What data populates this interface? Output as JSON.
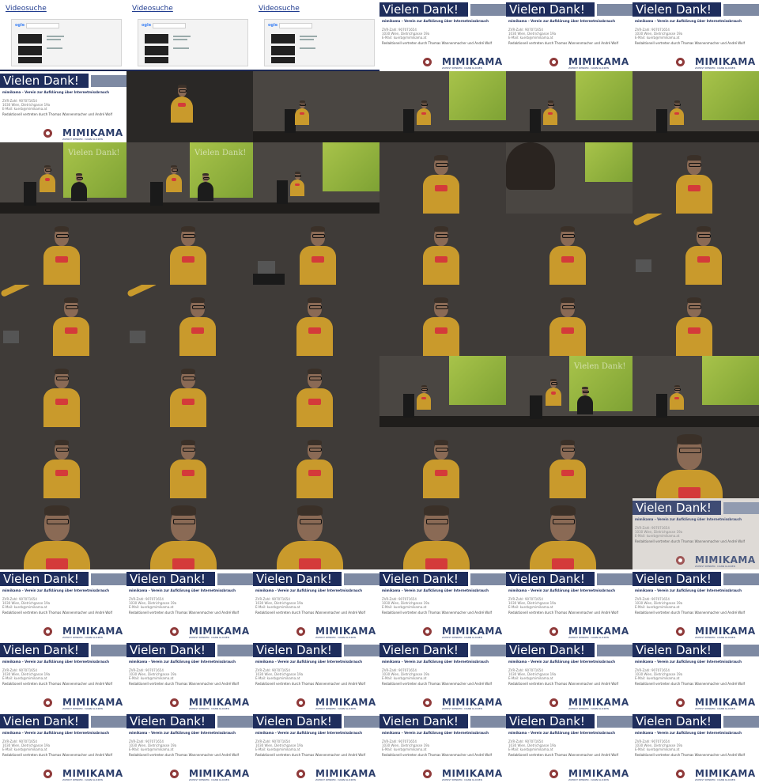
{
  "video_search_slide": {
    "title": "Videosuche",
    "logo_text": "ogle"
  },
  "thanks_slide": {
    "title": "Vielen Dank!",
    "org": "mimikama – Verein zur Aufklärung über Internetmissbrauch",
    "registration": "ZVR-Zahl: 907071654",
    "address": "1030 Wien, Dietrichgasse 19a",
    "email": "E-Mail: kuerb@mimikama.at",
    "representatives": "Redaktionell vertreten durch Thomas Wannenmacher und André Wolf",
    "logo_text": "MIMIKAMA",
    "logo_tagline": "ZUERST DENKEN · DANN KLICKEN"
  },
  "colors": {
    "slide_navy": "#1e2d5c",
    "slide_grey_bar": "#7e8aa3",
    "hoodie": "#c99a2c",
    "screen_green": "#a8c34a",
    "logo_red": "#8f3a3a"
  },
  "tiles": [
    "video-search",
    "video-search",
    "video-search",
    "thanks",
    "thanks",
    "thanks",
    "thanks",
    "speaker-wide",
    "stage-wide",
    "stage-screen",
    "stage-screen",
    "stage-screen",
    "stage-two",
    "stage-two",
    "stage-screen",
    "speaker-mid",
    "audience-head",
    "speaker-mid",
    "speaker-mid",
    "speaker-mid",
    "speaker-laptop",
    "speaker-mid",
    "speaker-mid",
    "speaker-point",
    "speaker-point",
    "speaker-point",
    "speaker-mid",
    "speaker-mid",
    "speaker-mid",
    "speaker-mid",
    "speaker-mid",
    "speaker-mid",
    "speaker-mid",
    "stage-screen",
    "stage-two",
    "stage-screen",
    "speaker-mid",
    "speaker-mid",
    "speaker-mid",
    "speaker-mid",
    "speaker-mid",
    "speaker-close",
    "speaker-close",
    "speaker-close",
    "speaker-close",
    "speaker-close",
    "speaker-close",
    "thanks-fade",
    "thanks",
    "thanks",
    "thanks",
    "thanks",
    "thanks",
    "thanks",
    "thanks",
    "thanks",
    "thanks",
    "thanks",
    "thanks",
    "thanks",
    "thanks",
    "thanks",
    "thanks",
    "thanks",
    "thanks",
    "thanks"
  ]
}
